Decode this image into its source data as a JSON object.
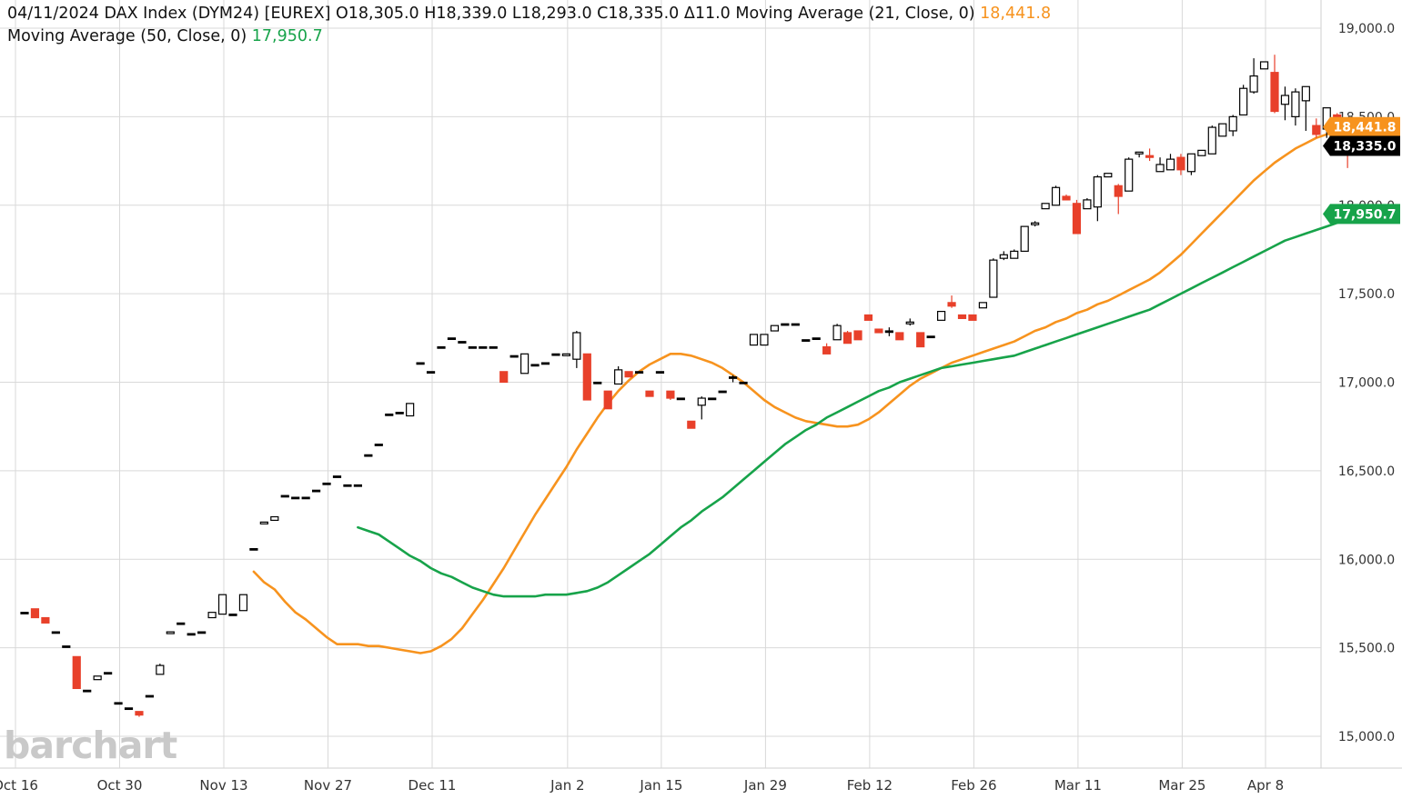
{
  "header": {
    "date": "04/11/2024",
    "instrument": "DAX Index (DYM24) [EUREX]",
    "ohlc": "O18,305.0 H18,339.0 L18,293.0 C18,335.0 Δ11.0",
    "ma21_label": "Moving Average  (21, Close, 0)",
    "ma21_value": "18,441.8",
    "ma50_label": "Moving Average  (50, Close, 0)",
    "ma50_value": "17,950.7"
  },
  "logo_text": "barchart",
  "colors": {
    "up": "#000000",
    "down": "#e8402a",
    "ma21": "#f7931e",
    "ma50": "#17a34a",
    "grid": "#d9d9d9",
    "last_price_tag": "#000000"
  },
  "chart_data": {
    "type": "candlestick",
    "title": "DAX Index (DYM24) [EUREX]",
    "ylim": [
      14900,
      19100
    ],
    "y_ticks": [
      15000,
      15500,
      16000,
      16500,
      17000,
      17500,
      18000,
      18500,
      19000
    ],
    "y_tick_labels": [
      "15,000.0",
      "15,500.0",
      "16,000.0",
      "16,500.0",
      "17,000.0",
      "17,500.0",
      "18,000.0",
      "18,500.0",
      "19,000.0"
    ],
    "x_tick_labels": [
      {
        "index": 0,
        "label": "Oct 16"
      },
      {
        "index": 10,
        "label": "Oct 30"
      },
      {
        "index": 20,
        "label": "Nov 13"
      },
      {
        "index": 30,
        "label": "Nov 27"
      },
      {
        "index": 40,
        "label": "Dec 11"
      },
      {
        "index": 53,
        "label": "Jan 2"
      },
      {
        "index": 62,
        "label": "Jan 15"
      },
      {
        "index": 72,
        "label": "Jan 29"
      },
      {
        "index": 82,
        "label": "Feb 12"
      },
      {
        "index": 92,
        "label": "Feb 26"
      },
      {
        "index": 102,
        "label": "Mar 11"
      },
      {
        "index": 112,
        "label": "Mar 25"
      },
      {
        "index": 120,
        "label": "Apr 8"
      }
    ],
    "candles_ohlc": [
      [
        15700,
        15700,
        15700,
        15700
      ],
      [
        15720,
        15720,
        15680,
        15670
      ],
      [
        15670,
        15670,
        15640,
        15640
      ],
      [
        15590,
        15590,
        15590,
        15590
      ],
      [
        15510,
        15510,
        15510,
        15510
      ],
      [
        15450,
        15450,
        15270,
        15270
      ],
      [
        15260,
        15260,
        15260,
        15260
      ],
      [
        15320,
        15340,
        15320,
        15340
      ],
      [
        15360,
        15360,
        15360,
        15360
      ],
      [
        15190,
        15190,
        15190,
        15190
      ],
      [
        15160,
        15160,
        15160,
        15160
      ],
      [
        15140,
        15140,
        15110,
        15120
      ],
      [
        15230,
        15230,
        15230,
        15230
      ],
      [
        15350,
        15410,
        15350,
        15400
      ],
      [
        15580,
        15590,
        15580,
        15590
      ],
      [
        15640,
        15640,
        15640,
        15640
      ],
      [
        15580,
        15580,
        15580,
        15580
      ],
      [
        15590,
        15590,
        15590,
        15590
      ],
      [
        15670,
        15700,
        15670,
        15700
      ],
      [
        15690,
        15800,
        15690,
        15800
      ],
      [
        15690,
        15690,
        15690,
        15690
      ],
      [
        15710,
        15800,
        15710,
        15800
      ],
      [
        16060,
        16060,
        16060,
        16060
      ],
      [
        16200,
        16210,
        16200,
        16210
      ],
      [
        16220,
        16240,
        16220,
        16240
      ],
      [
        16360,
        16360,
        16360,
        16360
      ],
      [
        16350,
        16350,
        16350,
        16350
      ],
      [
        16350,
        16350,
        16350,
        16350
      ],
      [
        16390,
        16390,
        16390,
        16390
      ],
      [
        16430,
        16430,
        16430,
        16430
      ],
      [
        16470,
        16470,
        16470,
        16470
      ],
      [
        16420,
        16420,
        16420,
        16420
      ],
      [
        16420,
        16420,
        16420,
        16420
      ],
      [
        16590,
        16590,
        16590,
        16590
      ],
      [
        16650,
        16650,
        16650,
        16650
      ],
      [
        16820,
        16820,
        16820,
        16820
      ],
      [
        16830,
        16830,
        16830,
        16830
      ],
      [
        16810,
        16880,
        16810,
        16880
      ],
      [
        17110,
        17110,
        17110,
        17110
      ],
      [
        17060,
        17060,
        17060,
        17060
      ],
      [
        17200,
        17200,
        17200,
        17200
      ],
      [
        17250,
        17250,
        17250,
        17250
      ],
      [
        17230,
        17230,
        17230,
        17230
      ],
      [
        17200,
        17200,
        17200,
        17200
      ],
      [
        17200,
        17200,
        17200,
        17200
      ],
      [
        17200,
        17200,
        17200,
        17200
      ],
      [
        17060,
        17060,
        17000,
        17000
      ],
      [
        17150,
        17150,
        17150,
        17150
      ],
      [
        17050,
        17160,
        17050,
        17160
      ],
      [
        17100,
        17100,
        17100,
        17100
      ],
      [
        17110,
        17110,
        17110,
        17110
      ],
      [
        17160,
        17160,
        17160,
        17160
      ],
      [
        17150,
        17160,
        17150,
        17160
      ],
      [
        17130,
        17290,
        17080,
        17280
      ],
      [
        17160,
        17160,
        16900,
        16900
      ],
      [
        17000,
        17000,
        17000,
        17000
      ],
      [
        16950,
        16950,
        16850,
        16850
      ],
      [
        16990,
        17090,
        16990,
        17070
      ],
      [
        17060,
        17060,
        17030,
        17030
      ],
      [
        17060,
        17060,
        17060,
        17060
      ],
      [
        16950,
        16950,
        16920,
        16920
      ],
      [
        17060,
        17060,
        17060,
        17060
      ],
      [
        16950,
        16950,
        16900,
        16910
      ],
      [
        16910,
        16910,
        16910,
        16910
      ],
      [
        16780,
        16780,
        16740,
        16740
      ],
      [
        16870,
        16920,
        16790,
        16910
      ],
      [
        16910,
        16910,
        16910,
        16910
      ],
      [
        16950,
        16950,
        16950,
        16950
      ],
      [
        17030,
        17040,
        17000,
        17030
      ],
      [
        17000,
        17000,
        17000,
        17000
      ],
      [
        17210,
        17270,
        17210,
        17270
      ],
      [
        17210,
        17270,
        17210,
        17270
      ],
      [
        17290,
        17320,
        17290,
        17320
      ],
      [
        17330,
        17330,
        17330,
        17330
      ],
      [
        17330,
        17330,
        17330,
        17330
      ],
      [
        17240,
        17240,
        17240,
        17240
      ],
      [
        17250,
        17250,
        17250,
        17250
      ],
      [
        17200,
        17220,
        17160,
        17160
      ],
      [
        17240,
        17330,
        17240,
        17320
      ],
      [
        17280,
        17290,
        17220,
        17220
      ],
      [
        17290,
        17290,
        17240,
        17240
      ],
      [
        17380,
        17380,
        17350,
        17350
      ],
      [
        17300,
        17300,
        17280,
        17280
      ],
      [
        17290,
        17310,
        17260,
        17290
      ],
      [
        17280,
        17280,
        17240,
        17240
      ],
      [
        17330,
        17360,
        17320,
        17340
      ],
      [
        17280,
        17280,
        17200,
        17200
      ],
      [
        17260,
        17260,
        17260,
        17260
      ],
      [
        17350,
        17400,
        17350,
        17400
      ],
      [
        17450,
        17490,
        17420,
        17430
      ],
      [
        17380,
        17380,
        17360,
        17360
      ],
      [
        17380,
        17380,
        17350,
        17350
      ],
      [
        17420,
        17450,
        17420,
        17450
      ],
      [
        17480,
        17700,
        17480,
        17690
      ],
      [
        17700,
        17740,
        17690,
        17720
      ],
      [
        17700,
        17750,
        17700,
        17740
      ],
      [
        17740,
        17880,
        17740,
        17880
      ],
      [
        17890,
        17910,
        17880,
        17900
      ],
      [
        17980,
        18010,
        17980,
        18010
      ],
      [
        18000,
        18110,
        18000,
        18100
      ],
      [
        18050,
        18060,
        18030,
        18030
      ],
      [
        18010,
        18030,
        17840,
        17840
      ],
      [
        17980,
        18040,
        17980,
        18030
      ],
      [
        17990,
        18170,
        17910,
        18160
      ],
      [
        18160,
        18180,
        18160,
        18180
      ],
      [
        18110,
        18120,
        17950,
        18050
      ],
      [
        18080,
        18270,
        18080,
        18260
      ],
      [
        18290,
        18300,
        18270,
        18300
      ],
      [
        18280,
        18320,
        18250,
        18270
      ],
      [
        18190,
        18270,
        18190,
        18230
      ],
      [
        18200,
        18290,
        18200,
        18260
      ],
      [
        18270,
        18290,
        18170,
        18200
      ],
      [
        18190,
        18290,
        18170,
        18290
      ],
      [
        18280,
        18310,
        18280,
        18310
      ],
      [
        18290,
        18450,
        18290,
        18440
      ],
      [
        18390,
        18460,
        18390,
        18460
      ],
      [
        18420,
        18510,
        18390,
        18500
      ],
      [
        18510,
        18680,
        18510,
        18660
      ],
      [
        18640,
        18830,
        18630,
        18730
      ],
      [
        18770,
        18810,
        18770,
        18810
      ],
      [
        18750,
        18850,
        18520,
        18530
      ],
      [
        18570,
        18670,
        18480,
        18620
      ],
      [
        18500,
        18660,
        18450,
        18640
      ],
      [
        18590,
        18670,
        18420,
        18670
      ],
      [
        18450,
        18490,
        18380,
        18400
      ],
      [
        18430,
        18520,
        18380,
        18550
      ],
      [
        18510,
        18520,
        18290,
        18290
      ],
      [
        18360,
        18440,
        18210,
        18330
      ],
      [
        18305,
        18339,
        18293,
        18335
      ]
    ],
    "series": [
      {
        "name": "Moving Average (21, Close, 0)",
        "last_value": 18441.8,
        "values": [
          15930,
          15870,
          15830,
          15760,
          15700,
          15660,
          15610,
          15560,
          15520,
          15520,
          15520,
          15510,
          15510,
          15500,
          15490,
          15480,
          15470,
          15480,
          15510,
          15550,
          15610,
          15690,
          15770,
          15860,
          15950,
          16050,
          16150,
          16250,
          16340,
          16430,
          16520,
          16620,
          16710,
          16800,
          16880,
          16950,
          17010,
          17060,
          17100,
          17130,
          17160,
          17160,
          17150,
          17130,
          17110,
          17080,
          17040,
          17000,
          16950,
          16900,
          16860,
          16830,
          16800,
          16780,
          16770,
          16760,
          16750,
          16750,
          16760,
          16790,
          16830,
          16880,
          16930,
          16980,
          17020,
          17050,
          17080,
          17110,
          17130,
          17150,
          17170,
          17190,
          17210,
          17230,
          17260,
          17290,
          17310,
          17340,
          17360,
          17390,
          17410,
          17440,
          17460,
          17490,
          17520,
          17550,
          17580,
          17620,
          17670,
          17720,
          17780,
          17840,
          17900,
          17960,
          18020,
          18080,
          18140,
          18190,
          18240,
          18280,
          18320,
          18350,
          18380,
          18400,
          18420,
          18420,
          18441.8
        ]
      },
      {
        "name": "Moving Average (50, Close, 0)",
        "last_value": 17950.7,
        "values": [
          16180,
          16160,
          16140,
          16100,
          16060,
          16020,
          15990,
          15950,
          15920,
          15900,
          15870,
          15840,
          15820,
          15800,
          15790,
          15790,
          15790,
          15790,
          15800,
          15800,
          15800,
          15810,
          15820,
          15840,
          15870,
          15910,
          15950,
          15990,
          16030,
          16080,
          16130,
          16180,
          16220,
          16270,
          16310,
          16350,
          16400,
          16450,
          16500,
          16550,
          16600,
          16650,
          16690,
          16730,
          16760,
          16800,
          16830,
          16860,
          16890,
          16920,
          16950,
          16970,
          17000,
          17020,
          17040,
          17060,
          17080,
          17090,
          17100,
          17110,
          17120,
          17130,
          17140,
          17150,
          17170,
          17190,
          17210,
          17230,
          17250,
          17270,
          17290,
          17310,
          17330,
          17350,
          17370,
          17390,
          17410,
          17440,
          17470,
          17500,
          17530,
          17560,
          17590,
          17620,
          17650,
          17680,
          17710,
          17740,
          17770,
          17800,
          17820,
          17840,
          17860,
          17880,
          17900,
          17920,
          17950.7
        ]
      }
    ]
  }
}
